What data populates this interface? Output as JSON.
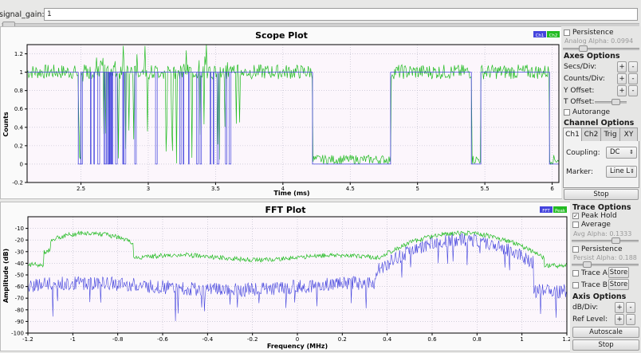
{
  "signal_gain": {
    "label": "signal_gain:",
    "value": "1"
  },
  "scope": {
    "title": "Scope Plot",
    "legend": [
      "Ch1",
      "Ch2"
    ],
    "controls": {
      "persistence": "Persistence",
      "analog_alpha": "Analog Alpha: 0.0994",
      "axes_title": "Axes Options",
      "secs_div": "Secs/Div:",
      "counts_div": "Counts/Div:",
      "y_offset": "Y Offset:",
      "t_offset": "T Offset:",
      "autorange": "Autorange",
      "channel_title": "Channel Options",
      "tabs": [
        "Ch1",
        "Ch2",
        "Trig",
        "XY"
      ],
      "coupling_label": "Coupling:",
      "coupling_value": "DC",
      "marker_label": "Marker:",
      "marker_value": "Line L",
      "plus": "+",
      "minus": "-",
      "stop": "Stop"
    }
  },
  "fft": {
    "title": "FFT Plot",
    "legend": [
      "FFT",
      "Peak"
    ],
    "controls": {
      "trace_title": "Trace Options",
      "peak_hold": "Peak Hold",
      "average": "Average",
      "avg_alpha": "Avg Alpha: 0.1333",
      "persistence": "Persistence",
      "persist_alpha": "Persist Alpha: 0.188",
      "trace_a": "Trace A",
      "trace_b": "Trace B",
      "store": "Store",
      "axis_title": "Axis Options",
      "db_div": "dB/Div:",
      "ref_level": "Ref Level:",
      "plus": "+",
      "minus": "-",
      "autoscale": "Autoscale",
      "stop": "Stop"
    }
  },
  "colors": {
    "ch1": "#4444dd",
    "ch2": "#22bb22",
    "plot_bg": "#fcf6fc",
    "frame": "#000000"
  },
  "chart_data": [
    {
      "type": "line",
      "title": "Scope Plot",
      "xlabel": "Time (ms)",
      "ylabel": "Counts",
      "xlim": [
        2.1,
        6.05
      ],
      "ylim": [
        -0.2,
        1.3
      ],
      "x_ticks": [
        "2.5",
        "3",
        "3.5",
        "4",
        "4.5",
        "5",
        "5.5",
        "6"
      ],
      "y_ticks": [
        "-0.2",
        "0",
        "0.2",
        "0.4",
        "0.6",
        "0.8",
        "1",
        "1.2"
      ],
      "series": [
        {
          "name": "Ch1",
          "color": "#4444dd",
          "segments": [
            [
              2.1,
              1
            ],
            [
              2.48,
              1
            ],
            [
              2.48,
              0
            ],
            [
              2.5,
              0
            ],
            [
              2.5,
              1
            ],
            [
              4.22,
              1
            ],
            [
              4.22,
              0
            ],
            [
              4.8,
              0
            ],
            [
              4.8,
              1
            ],
            [
              5.4,
              1
            ],
            [
              5.4,
              0
            ],
            [
              5.47,
              0
            ],
            [
              5.47,
              1
            ],
            [
              5.98,
              1
            ],
            [
              5.98,
              0
            ],
            [
              6.05,
              0
            ]
          ]
        },
        {
          "name": "Ch2",
          "color": "#22bb22"
        }
      ],
      "grid": true
    },
    {
      "type": "line",
      "title": "FFT Plot",
      "xlabel": "Frequency (MHz)",
      "ylabel": "Amplitude (dB)",
      "xlim": [
        -1.2,
        1.2
      ],
      "ylim": [
        -100,
        0
      ],
      "x_ticks": [
        "-1.2",
        "-1",
        "-0.8",
        "-0.6",
        "-0.4",
        "-0.2",
        "0",
        "0.2",
        "0.4",
        "0.6",
        "0.8",
        "1",
        "1.2"
      ],
      "y_ticks": [
        "-100",
        "-90",
        "-80",
        "-70",
        "-60",
        "-50",
        "-40",
        "-30",
        "-20",
        "-10"
      ],
      "series": [
        {
          "name": "FFT",
          "color": "#4444dd"
        },
        {
          "name": "Peak",
          "color": "#22bb22"
        }
      ],
      "grid": true
    }
  ]
}
